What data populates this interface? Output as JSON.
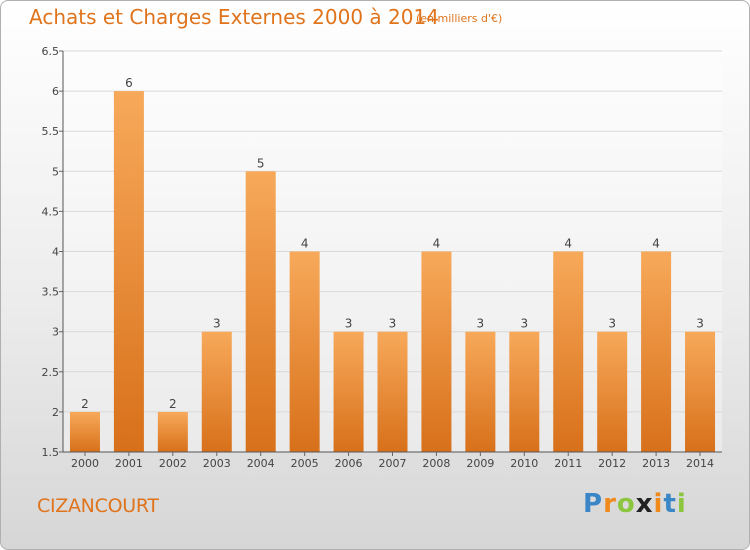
{
  "header": {
    "title": "Achats et Charges Externes 2000 à 2014",
    "subtitle": "(en milliers d'€)"
  },
  "footer": {
    "commune": "CIZANCOURT",
    "brand": "Proxiti"
  },
  "colors": {
    "accent": "#e0741c",
    "bar_light": "#f7a95a",
    "bar_dark": "#d8701a",
    "grid": "#d9d9d9"
  },
  "chart_data": {
    "type": "bar",
    "title": "Achats et Charges Externes 2000 à 2014",
    "subtitle": "(en milliers d'€)",
    "xlabel": "",
    "ylabel": "",
    "categories": [
      "2000",
      "2001",
      "2002",
      "2003",
      "2004",
      "2005",
      "2006",
      "2007",
      "2008",
      "2009",
      "2010",
      "2011",
      "2012",
      "2013",
      "2014"
    ],
    "values": [
      2,
      6,
      2,
      3,
      5,
      4,
      3,
      3,
      4,
      3,
      3,
      4,
      3,
      4,
      3
    ],
    "data_labels": [
      "2",
      "6",
      "2",
      "3",
      "5",
      "4",
      "3",
      "3",
      "4",
      "3",
      "3",
      "4",
      "3",
      "4",
      "3"
    ],
    "ylim": [
      1.5,
      6.5
    ],
    "yticks": [
      "1.5",
      "2",
      "2.5",
      "3",
      "3.5",
      "4",
      "4.5",
      "5",
      "5.5",
      "6",
      "6.5"
    ],
    "grid": true,
    "legend": "none"
  }
}
